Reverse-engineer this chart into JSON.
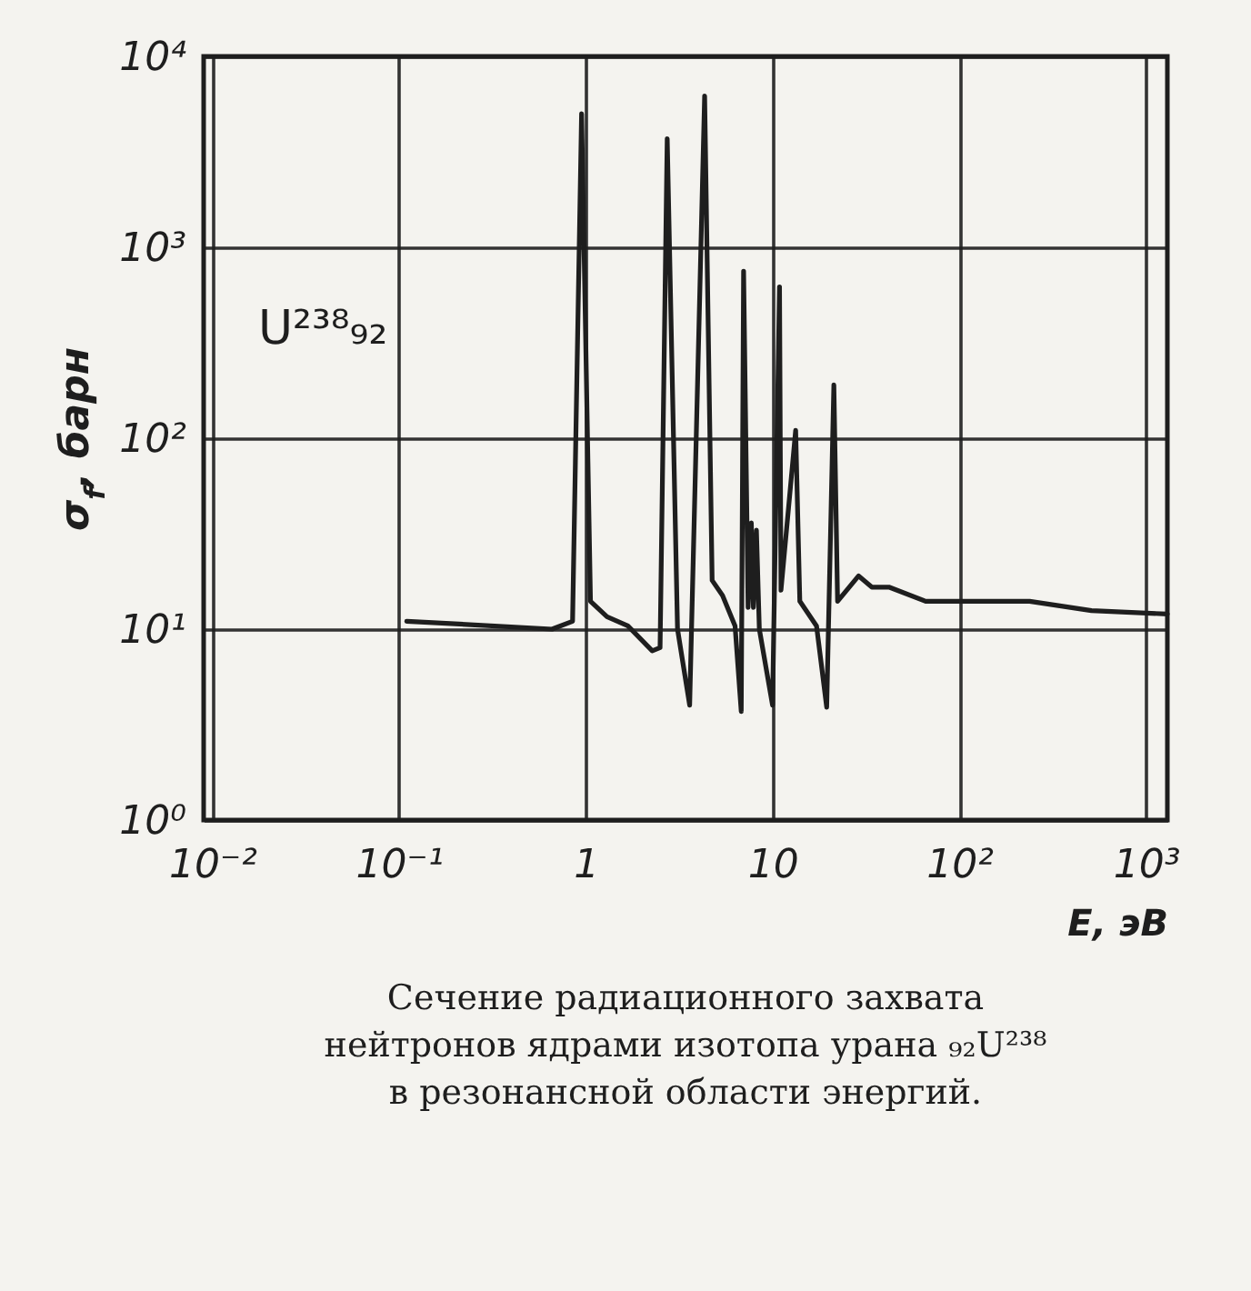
{
  "chart_data": {
    "type": "line",
    "title": "Сечение радиационного захвата\nнейтронов ядрами изотопа урана ₉₂U²³⁸\nв резонансной области энергий.",
    "xlabel": "E, эВ",
    "ylabel": "σ$_{f}$, барн",
    "annotations": [
      "U²³⁸₉₂"
    ],
    "log": "xy",
    "grid": true,
    "marker": "none",
    "line_style": "solid",
    "xlim": [
      0.009,
      1300
    ],
    "ylim": [
      1,
      10000
    ],
    "xticks": [
      {
        "value": 0.01,
        "label": "10⁻²"
      },
      {
        "value": 0.1,
        "label": "10⁻¹"
      },
      1,
      10,
      {
        "value": 100,
        "label": "10²"
      },
      {
        "value": 1000,
        "label": "10³"
      }
    ],
    "yticks": [
      {
        "value": 1,
        "label": "10⁰"
      },
      {
        "value": 10,
        "label": "10¹"
      },
      {
        "value": 100,
        "label": "10²"
      },
      {
        "value": 1000,
        "label": "10³"
      },
      {
        "value": 10000,
        "label": "10⁴"
      }
    ],
    "series": [
      {
        "color": "#1e1e1e",
        "x": [
          0.11,
          0.66,
          0.85,
          0.95,
          1.06,
          1.3,
          1.68,
          2.27,
          2.5,
          2.73,
          3.1,
          3.6,
          4.33,
          4.75,
          5.4,
          6.3,
          6.8,
          7.0,
          7.4,
          7.7,
          7.9,
          8.2,
          8.5,
          10,
          10.9,
          11.1,
          13.3,
          14,
          17.2,
          19.5,
          21.3,
          22.3,
          28.9,
          34,
          42,
          66,
          238,
          510,
          1300
        ],
        "values": [
          11,
          10,
          11,
          5000,
          14,
          11.6,
          10.4,
          7.7,
          8,
          3700,
          10,
          4,
          6200,
          18,
          15,
          10.4,
          3.7,
          750,
          13,
          36,
          13,
          33,
          10,
          4,
          620,
          16,
          110,
          14,
          10.4,
          3.9,
          190,
          14,
          19,
          16.6,
          16.6,
          14,
          14,
          12.5,
          12
        ]
      }
    ]
  }
}
